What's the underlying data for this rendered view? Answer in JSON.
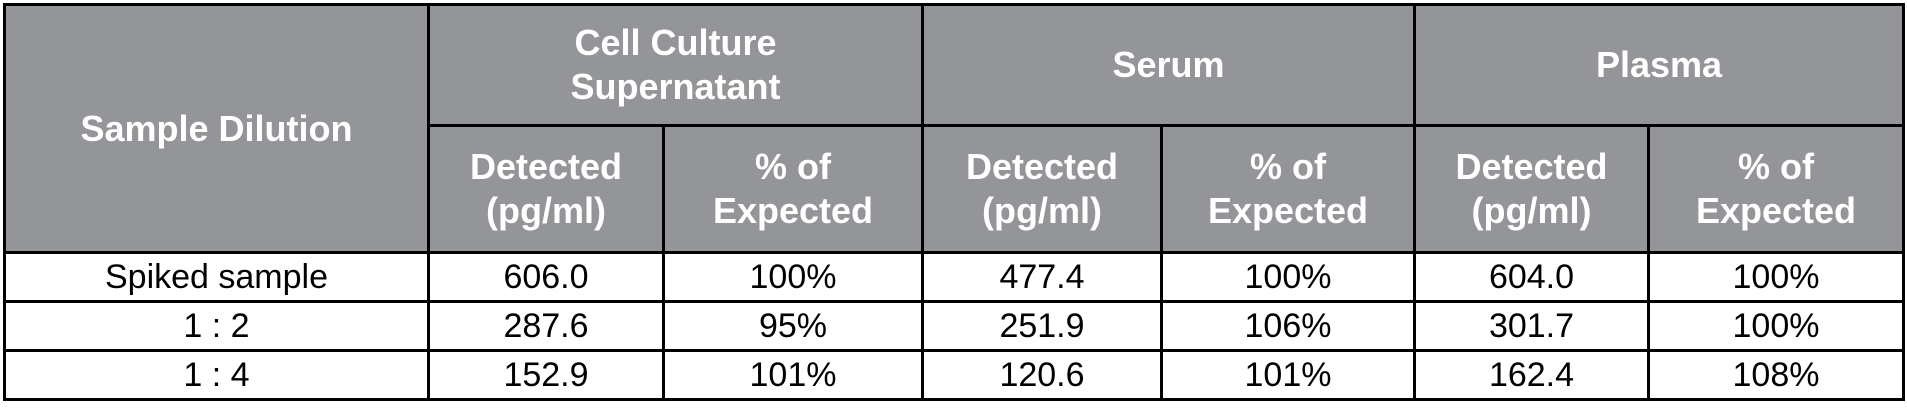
{
  "table": {
    "corner": "Sample Dilution",
    "groups": [
      "Cell Culture\nSupernatant",
      "Serum",
      "Plasma"
    ],
    "subheaders": [
      "Detected\n(pg/ml)",
      "% of\nExpected",
      "Detected\n(pg/ml)",
      "% of\nExpected",
      "Detected\n(pg/ml)",
      "% of\nExpected"
    ],
    "rows": [
      [
        "Spiked sample",
        "606.0",
        "100%",
        "477.4",
        "100%",
        "604.0",
        "100%"
      ],
      [
        "1 : 2",
        "287.6",
        "95%",
        "251.9",
        "106%",
        "301.7",
        "100%"
      ],
      [
        "1 : 4",
        "152.9",
        "101%",
        "120.6",
        "101%",
        "162.4",
        "108%"
      ]
    ]
  }
}
